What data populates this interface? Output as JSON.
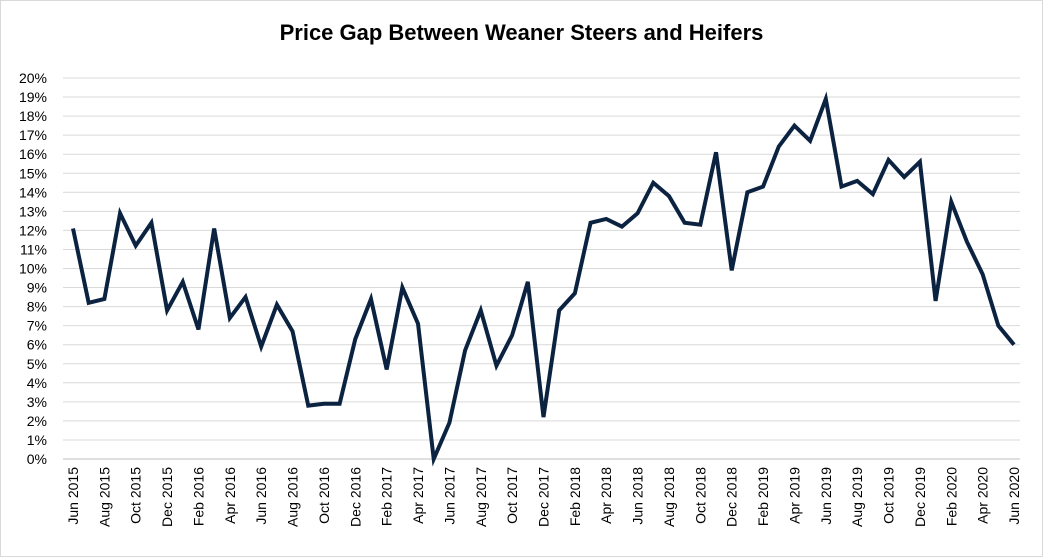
{
  "chart_data": {
    "type": "line",
    "title": "Price Gap Between Weaner Steers and Heifers",
    "xlabel": "",
    "ylabel": "",
    "ylim": [
      0,
      20
    ],
    "y_ticks": [
      "0%",
      "1%",
      "2%",
      "3%",
      "4%",
      "5%",
      "6%",
      "7%",
      "8%",
      "9%",
      "10%",
      "11%",
      "12%",
      "13%",
      "14%",
      "15%",
      "16%",
      "17%",
      "18%",
      "19%",
      "20%"
    ],
    "x_tick_labels": [
      "Jun 2015",
      "Aug 2015",
      "Oct 2015",
      "Dec 2015",
      "Feb 2016",
      "Apr 2016",
      "Jun 2016",
      "Aug 2016",
      "Oct 2016",
      "Dec 2016",
      "Feb 2017",
      "Apr 2017",
      "Jun 2017",
      "Aug 2017",
      "Oct 2017",
      "Dec 2017",
      "Feb 2018",
      "Apr 2018",
      "Jun 2018",
      "Aug 2018",
      "Oct 2018",
      "Dec 2018",
      "Feb 2019",
      "Apr 2019",
      "Jun 2019",
      "Aug 2019",
      "Oct 2019",
      "Dec 2019",
      "Feb 2020",
      "Apr 2020",
      "Jun 2020"
    ],
    "x": [
      "Jun 2015",
      "Jul 2015",
      "Aug 2015",
      "Sep 2015",
      "Oct 2015",
      "Nov 2015",
      "Dec 2015",
      "Jan 2016",
      "Feb 2016",
      "Mar 2016",
      "Apr 2016",
      "May 2016",
      "Jun 2016",
      "Jul 2016",
      "Aug 2016",
      "Sep 2016",
      "Oct 2016",
      "Nov 2016",
      "Dec 2016",
      "Jan 2017",
      "Feb 2017",
      "Mar 2017",
      "Apr 2017",
      "May 2017",
      "Jun 2017",
      "Jul 2017",
      "Aug 2017",
      "Sep 2017",
      "Oct 2017",
      "Nov 2017",
      "Dec 2017",
      "Jan 2018",
      "Feb 2018",
      "Mar 2018",
      "Apr 2018",
      "May 2018",
      "Jun 2018",
      "Jul 2018",
      "Aug 2018",
      "Sep 2018",
      "Oct 2018",
      "Nov 2018",
      "Dec 2018",
      "Jan 2019",
      "Feb 2019",
      "Mar 2019",
      "Apr 2019",
      "May 2019",
      "Jun 2019",
      "Jul 2019",
      "Aug 2019",
      "Sep 2019",
      "Oct 2019",
      "Nov 2019",
      "Dec 2019",
      "Jan 2020",
      "Feb 2020",
      "Mar 2020",
      "Apr 2020",
      "May 2020",
      "Jun 2020"
    ],
    "series": [
      {
        "values": [
          12.1,
          8.2,
          8.4,
          12.9,
          11.2,
          12.4,
          7.8,
          9.3,
          6.8,
          12.1,
          7.4,
          8.5,
          5.9,
          8.1,
          6.7,
          2.8,
          2.9,
          2.9,
          6.3,
          8.4,
          4.7,
          9.0,
          7.1,
          0.0,
          1.9,
          5.7,
          7.8,
          4.9,
          6.5,
          9.3,
          2.2,
          7.8,
          8.7,
          12.4,
          12.6,
          12.2,
          12.9,
          14.5,
          13.8,
          12.4,
          12.3,
          16.1,
          9.9,
          14.0,
          14.3,
          16.4,
          17.5,
          16.7,
          18.9,
          14.3,
          14.6,
          13.9,
          15.7,
          14.8,
          15.6,
          8.3,
          13.5,
          11.4,
          9.7,
          7.0,
          6.0
        ],
        "color": "#0b2340"
      }
    ],
    "grid": true,
    "legend": "none"
  }
}
